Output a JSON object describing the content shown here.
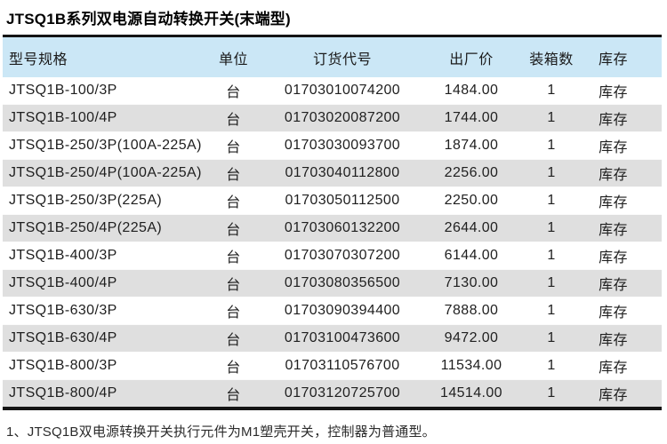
{
  "page": {
    "title": "JTSQ1B系列双电源自动转换开关(末端型)",
    "footnote": "1、JTSQ1B双电源转换开关执行元件为M1塑壳开关，控制器为普通型。"
  },
  "table": {
    "columns": [
      "型号规格",
      "单位",
      "订货代号",
      "出厂价",
      "装箱数",
      "库存"
    ],
    "rows": [
      [
        "JTSQ1B-100/3P",
        "台",
        "01703010074200",
        "1484.00",
        "1",
        "库存"
      ],
      [
        "JTSQ1B-100/4P",
        "台",
        "01703020087200",
        "1744.00",
        "1",
        "库存"
      ],
      [
        "JTSQ1B-250/3P(100A-225A)",
        "台",
        "01703030093700",
        "1874.00",
        "1",
        "库存"
      ],
      [
        "JTSQ1B-250/4P(100A-225A)",
        "台",
        "01703040112800",
        "2256.00",
        "1",
        "库存"
      ],
      [
        "JTSQ1B-250/3P(225A)",
        "台",
        "01703050112500",
        "2250.00",
        "1",
        "库存"
      ],
      [
        "JTSQ1B-250/4P(225A)",
        "台",
        "01703060132200",
        "2644.00",
        "1",
        "库存"
      ],
      [
        "JTSQ1B-400/3P",
        "台",
        "01703070307200",
        "6144.00",
        "1",
        "库存"
      ],
      [
        "JTSQ1B-400/4P",
        "台",
        "01703080356500",
        "7130.00",
        "1",
        "库存"
      ],
      [
        "JTSQ1B-630/3P",
        "台",
        "01703090394400",
        "7888.00",
        "1",
        "库存"
      ],
      [
        "JTSQ1B-630/4P",
        "台",
        "01703100473600",
        "9472.00",
        "1",
        "库存"
      ],
      [
        "JTSQ1B-800/3P",
        "台",
        "01703110576700",
        "11534.00",
        "1",
        "库存"
      ],
      [
        "JTSQ1B-800/4P",
        "台",
        "01703120725700",
        "14514.00",
        "1",
        "库存"
      ]
    ]
  },
  "colors": {
    "header_bg": "#cbe7f6",
    "alt_row_bg": "#dfdfdf",
    "rule": "#141414"
  }
}
